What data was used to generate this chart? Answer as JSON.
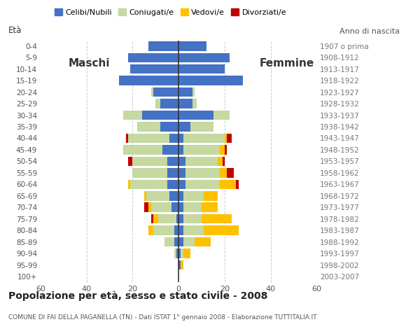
{
  "age_groups": [
    "0-4",
    "5-9",
    "10-14",
    "15-19",
    "20-24",
    "25-29",
    "30-34",
    "35-39",
    "40-44",
    "45-49",
    "50-54",
    "55-59",
    "60-64",
    "65-69",
    "70-74",
    "75-79",
    "80-84",
    "85-89",
    "90-94",
    "95-99",
    "100+"
  ],
  "birth_years": [
    "2003-2007",
    "1998-2002",
    "1993-1997",
    "1988-1992",
    "1983-1987",
    "1978-1982",
    "1973-1977",
    "1968-1972",
    "1963-1967",
    "1958-1962",
    "1953-1957",
    "1948-1952",
    "1943-1947",
    "1938-1942",
    "1933-1937",
    "1928-1932",
    "1923-1927",
    "1918-1922",
    "1913-1917",
    "1908-1912",
    "1907 o prima"
  ],
  "males_celibi": [
    13,
    22,
    21,
    26,
    11,
    8,
    16,
    8,
    4,
    7,
    5,
    5,
    5,
    4,
    3,
    1,
    2,
    2,
    1,
    0,
    0
  ],
  "males_coniugati": [
    0,
    0,
    0,
    0,
    1,
    2,
    8,
    10,
    18,
    17,
    15,
    15,
    16,
    10,
    9,
    8,
    9,
    4,
    1,
    0,
    0
  ],
  "males_vedovi": [
    0,
    0,
    0,
    0,
    0,
    0,
    0,
    0,
    0,
    0,
    0,
    0,
    1,
    1,
    1,
    2,
    2,
    0,
    0,
    0,
    0
  ],
  "males_divorziati": [
    0,
    0,
    0,
    0,
    0,
    0,
    0,
    0,
    1,
    0,
    2,
    0,
    0,
    0,
    2,
    1,
    0,
    0,
    0,
    0,
    0
  ],
  "females_nubili": [
    12,
    22,
    20,
    28,
    6,
    6,
    15,
    5,
    2,
    2,
    3,
    3,
    3,
    2,
    2,
    2,
    2,
    2,
    1,
    1,
    0
  ],
  "females_coniugate": [
    0,
    0,
    0,
    0,
    1,
    2,
    7,
    10,
    18,
    16,
    14,
    15,
    15,
    9,
    8,
    8,
    9,
    5,
    1,
    0,
    0
  ],
  "females_vedove": [
    0,
    0,
    0,
    0,
    0,
    0,
    0,
    0,
    1,
    2,
    2,
    3,
    7,
    6,
    7,
    13,
    15,
    7,
    3,
    1,
    0
  ],
  "females_divorziate": [
    0,
    0,
    0,
    0,
    0,
    0,
    0,
    0,
    2,
    1,
    1,
    3,
    1,
    0,
    0,
    0,
    0,
    0,
    0,
    0,
    0
  ],
  "color_celibi": "#4472c4",
  "color_coniugati": "#c5d9a0",
  "color_vedovi": "#ffc000",
  "color_divorziati": "#c00000",
  "xlim": 60,
  "bar_height": 0.82,
  "title": "Popolazione per età, sesso e stato civile - 2008",
  "subtitle": "COMUNE DI FAI DELLA PAGANELLA (TN) - Dati ISTAT 1° gennaio 2008 - Elaborazione TUTTITALIA.IT",
  "eta_label": "Età",
  "anno_label": "Anno di nascita",
  "maschi_label": "Maschi",
  "femmine_label": "Femmine",
  "legend_labels": [
    "Celibi/Nubili",
    "Coniugati/e",
    "Vedovi/e",
    "Divorziati/e"
  ],
  "xtick_vals": [
    -60,
    -40,
    -20,
    0,
    20,
    40,
    60
  ],
  "xtick_labels": [
    "60",
    "40",
    "20",
    "0",
    "20",
    "40",
    "60"
  ],
  "grid_lines": [
    -40,
    -20,
    20,
    40
  ]
}
